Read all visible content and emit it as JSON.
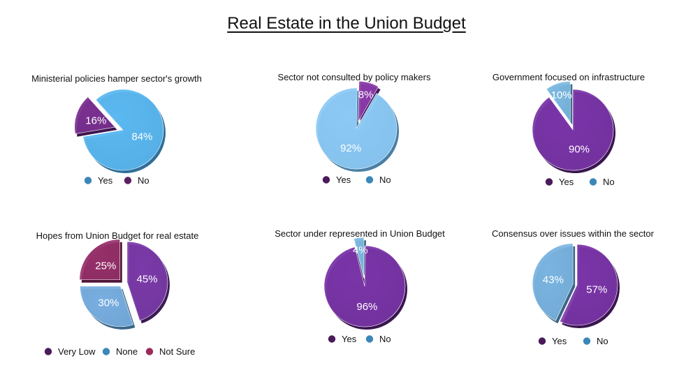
{
  "page_title": "Real Estate in the Union Budget",
  "chart_data": [
    {
      "type": "pie",
      "title": "Ministerial policies hamper sector's growth",
      "slices": [
        {
          "label": "Yes",
          "value": 84,
          "display": "84%",
          "color": "#5bb8f0",
          "side": "#2f6f99",
          "exploded": false
        },
        {
          "label": "No",
          "value": 16,
          "display": "16%",
          "color": "#7a3090",
          "side": "#3d1550",
          "exploded": true
        }
      ],
      "legend": [
        {
          "label": "Yes",
          "color": "#3a87b8"
        },
        {
          "label": "No",
          "color": "#5a2060"
        }
      ]
    },
    {
      "type": "pie",
      "title": "Sector not consulted by policy makers",
      "slices": [
        {
          "label": "No",
          "value": 92,
          "display": "92%",
          "color": "#8ccaf5",
          "side": "#4a7fa6",
          "exploded": false
        },
        {
          "label": "Yes",
          "value": 8,
          "display": "8%",
          "color": "#8a3aa8",
          "side": "#4a1a60",
          "exploded": true
        }
      ],
      "legend": [
        {
          "label": "Yes",
          "color": "#4a1a5a"
        },
        {
          "label": "No",
          "color": "#3a87b8"
        }
      ]
    },
    {
      "type": "pie",
      "title": "Government focused on infrastructure",
      "slices": [
        {
          "label": "No",
          "value": 10,
          "display": "10%",
          "color": "#7cb8e0",
          "side": "#3e6a8c",
          "exploded": true
        },
        {
          "label": "Yes",
          "value": 90,
          "display": "90%",
          "color": "#7a35a8",
          "side": "#3a1550",
          "exploded": false
        }
      ],
      "legend": [
        {
          "label": "Yes",
          "color": "#4a1a5a"
        },
        {
          "label": "No",
          "color": "#3a87b8"
        }
      ]
    },
    {
      "type": "pie",
      "title": "Hopes from Union Budget for real estate",
      "slices": [
        {
          "label": "Very Low",
          "value": 45,
          "display": "45%",
          "color": "#7a3aa8",
          "side": "#3c1a55",
          "exploded": true
        },
        {
          "label": "None",
          "value": 30,
          "display": "30%",
          "color": "#78aee0",
          "side": "#3b6688",
          "exploded": true
        },
        {
          "label": "Not Sure",
          "value": 25,
          "display": "25%",
          "color": "#96306a",
          "side": "#4e1436",
          "exploded": true
        }
      ],
      "legend": [
        {
          "label": "Very Low",
          "color": "#4a1a5a"
        },
        {
          "label": "None",
          "color": "#3a87b8"
        },
        {
          "label": "Not Sure",
          "color": "#9a2a5a"
        }
      ]
    },
    {
      "type": "pie",
      "title": "Sector under represented in Union Budget",
      "slices": [
        {
          "label": "No",
          "value": 4,
          "display": "4%",
          "color": "#7cb8e0",
          "side": "#3e6a8c",
          "exploded": true
        },
        {
          "label": "Yes",
          "value": 96,
          "display": "96%",
          "color": "#7a35a8",
          "side": "#3a1550",
          "exploded": false
        }
      ],
      "legend": [
        {
          "label": "Yes",
          "color": "#4a1a5a"
        },
        {
          "label": "No",
          "color": "#3a87b8"
        }
      ]
    },
    {
      "type": "pie",
      "title": "Consensus over issues within the sector",
      "slices": [
        {
          "label": "Yes",
          "value": 57,
          "display": "57%",
          "color": "#7a35a8",
          "side": "#3a1550",
          "exploded": false
        },
        {
          "label": "No",
          "value": 43,
          "display": "43%",
          "color": "#7ab4e0",
          "side": "#3b6688",
          "exploded": true
        }
      ],
      "legend": [
        {
          "label": "Yes",
          "color": "#4a1a5a"
        },
        {
          "label": "No",
          "color": "#3a87b8"
        }
      ]
    }
  ]
}
